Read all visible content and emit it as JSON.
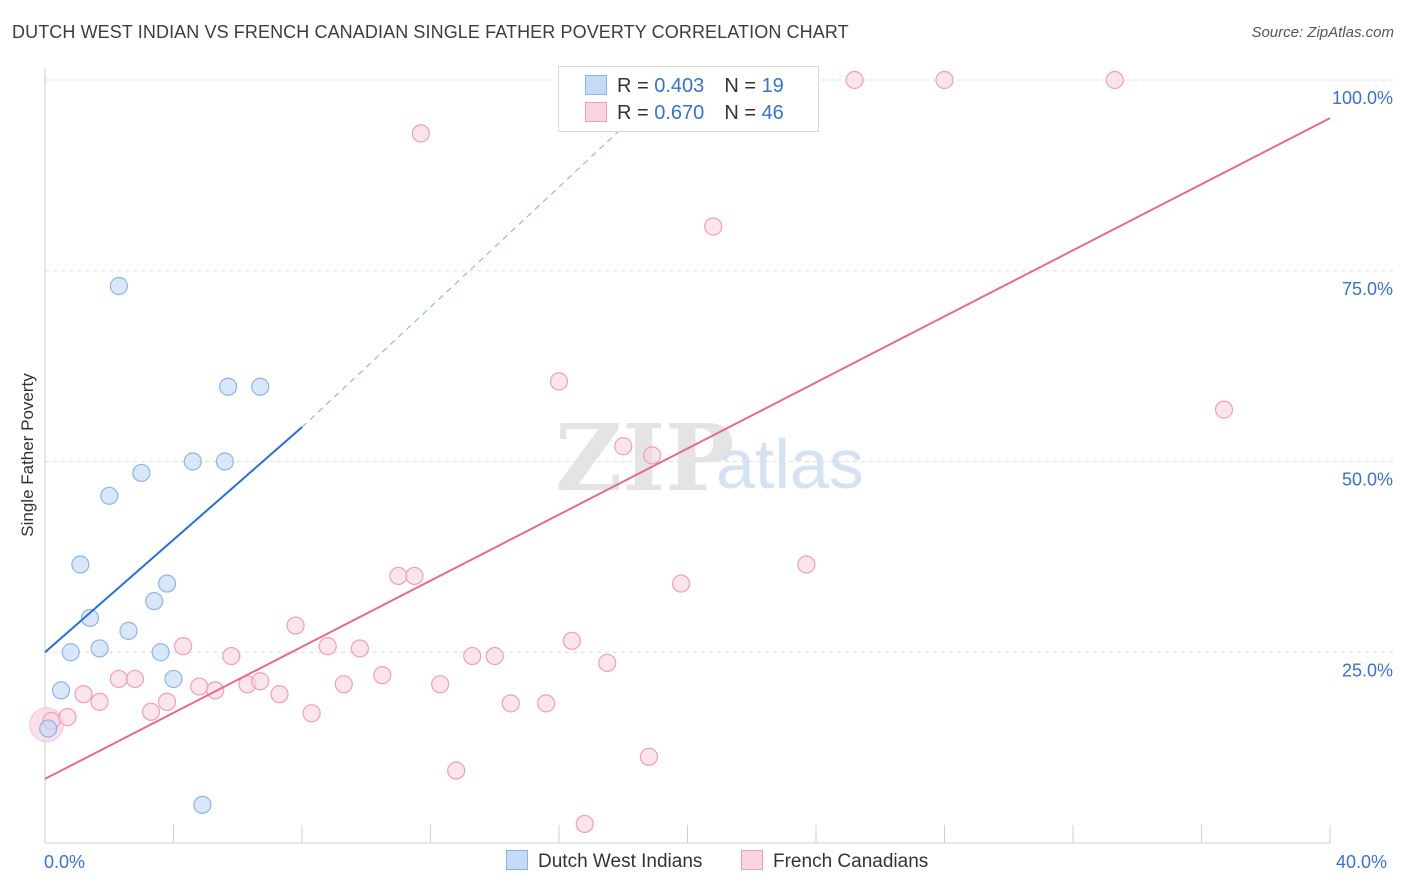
{
  "title": "DUTCH WEST INDIAN VS FRENCH CANADIAN SINGLE FATHER POVERTY CORRELATION CHART",
  "source": "Source: ZipAtlas.com",
  "watermark": {
    "zip": "ZIP",
    "atlas": "atlas"
  },
  "legend_top": {
    "rows": [
      {
        "r_label": "R = ",
        "r_value": "0.403",
        "n_label": "N = ",
        "n_value": "19",
        "color": "#a9c8f0"
      },
      {
        "r_label": "R = ",
        "r_value": "0.670",
        "n_label": "N = ",
        "n_value": "46",
        "color": "#f4b8cb"
      }
    ]
  },
  "legend_bottom": {
    "items": [
      {
        "label": "Dutch West Indians",
        "color": "#a9c8f0"
      },
      {
        "label": "French Canadians",
        "color": "#f4b8cb"
      }
    ]
  },
  "colors": {
    "blue_fill": "#c5daf5",
    "blue_stroke": "#8db4e8",
    "blue_line": "#2a6fd0",
    "pink_fill": "#f9d3df",
    "pink_stroke": "#ee9fb8",
    "pink_line": "#e56a92",
    "tick_text": "#3a73c4",
    "grid": "#dcdcdc"
  },
  "chart_data": {
    "type": "scatter",
    "ylabel": "Single Father Poverty",
    "xlabel": "",
    "xlim": [
      0,
      40
    ],
    "ylim": [
      0,
      100
    ],
    "x_tick_labels": [
      "0.0%",
      "40.0%"
    ],
    "y_ticks": [
      25,
      50,
      75,
      100
    ],
    "y_tick_labels": [
      "25.0%",
      "50.0%",
      "75.0%",
      "100.0%"
    ],
    "grid": true,
    "series": [
      {
        "name": "Dutch West Indians",
        "points": [
          [
            0.1,
            15.0
          ],
          [
            0.5,
            20.0
          ],
          [
            0.8,
            25.0
          ],
          [
            1.1,
            36.5
          ],
          [
            1.4,
            29.5
          ],
          [
            1.7,
            25.5
          ],
          [
            2.0,
            45.5
          ],
          [
            2.3,
            73.0
          ],
          [
            2.6,
            27.8
          ],
          [
            3.0,
            48.5
          ],
          [
            3.4,
            31.7
          ],
          [
            3.6,
            25.0
          ],
          [
            3.8,
            34.0
          ],
          [
            4.0,
            21.5
          ],
          [
            4.6,
            50.0
          ],
          [
            4.9,
            5.0
          ],
          [
            5.6,
            50.0
          ],
          [
            5.7,
            59.8
          ],
          [
            6.7,
            59.8
          ]
        ],
        "trend": {
          "x": [
            0,
            8
          ],
          "y": [
            25.0,
            54.5
          ],
          "dashed_extension_to": [
            18.8,
            97.0
          ]
        }
      },
      {
        "name": "French Canadians",
        "points": [
          [
            0.2,
            16.0
          ],
          [
            0.7,
            16.5
          ],
          [
            1.2,
            19.5
          ],
          [
            1.7,
            18.5
          ],
          [
            2.3,
            21.5
          ],
          [
            2.8,
            21.5
          ],
          [
            3.3,
            17.2
          ],
          [
            3.8,
            18.5
          ],
          [
            4.3,
            25.8
          ],
          [
            4.8,
            20.5
          ],
          [
            5.3,
            20.0
          ],
          [
            5.8,
            24.5
          ],
          [
            6.3,
            20.8
          ],
          [
            6.7,
            21.2
          ],
          [
            7.3,
            19.5
          ],
          [
            7.8,
            28.5
          ],
          [
            8.3,
            17.0
          ],
          [
            8.8,
            25.8
          ],
          [
            9.3,
            20.8
          ],
          [
            9.8,
            25.5
          ],
          [
            10.5,
            22.0
          ],
          [
            11.0,
            35.0
          ],
          [
            11.5,
            35.0
          ],
          [
            11.7,
            93.0
          ],
          [
            12.3,
            20.8
          ],
          [
            12.8,
            9.5
          ],
          [
            13.3,
            24.5
          ],
          [
            14.0,
            24.5
          ],
          [
            14.5,
            18.3
          ],
          [
            15.6,
            18.3
          ],
          [
            16.0,
            60.5
          ],
          [
            16.4,
            26.5
          ],
          [
            16.8,
            2.5
          ],
          [
            17.5,
            23.6
          ],
          [
            18.0,
            52.0
          ],
          [
            18.8,
            11.3
          ],
          [
            18.9,
            50.8
          ],
          [
            19.8,
            34.0
          ],
          [
            20.8,
            80.8
          ],
          [
            21.9,
            100.0
          ],
          [
            22.3,
            100.0
          ],
          [
            23.7,
            36.5
          ],
          [
            25.2,
            100.0
          ],
          [
            28.0,
            100.0
          ],
          [
            33.3,
            100.0
          ],
          [
            36.7,
            56.8
          ]
        ],
        "trend": {
          "x": [
            0,
            40
          ],
          "y": [
            8.4,
            95.0
          ]
        }
      }
    ]
  }
}
